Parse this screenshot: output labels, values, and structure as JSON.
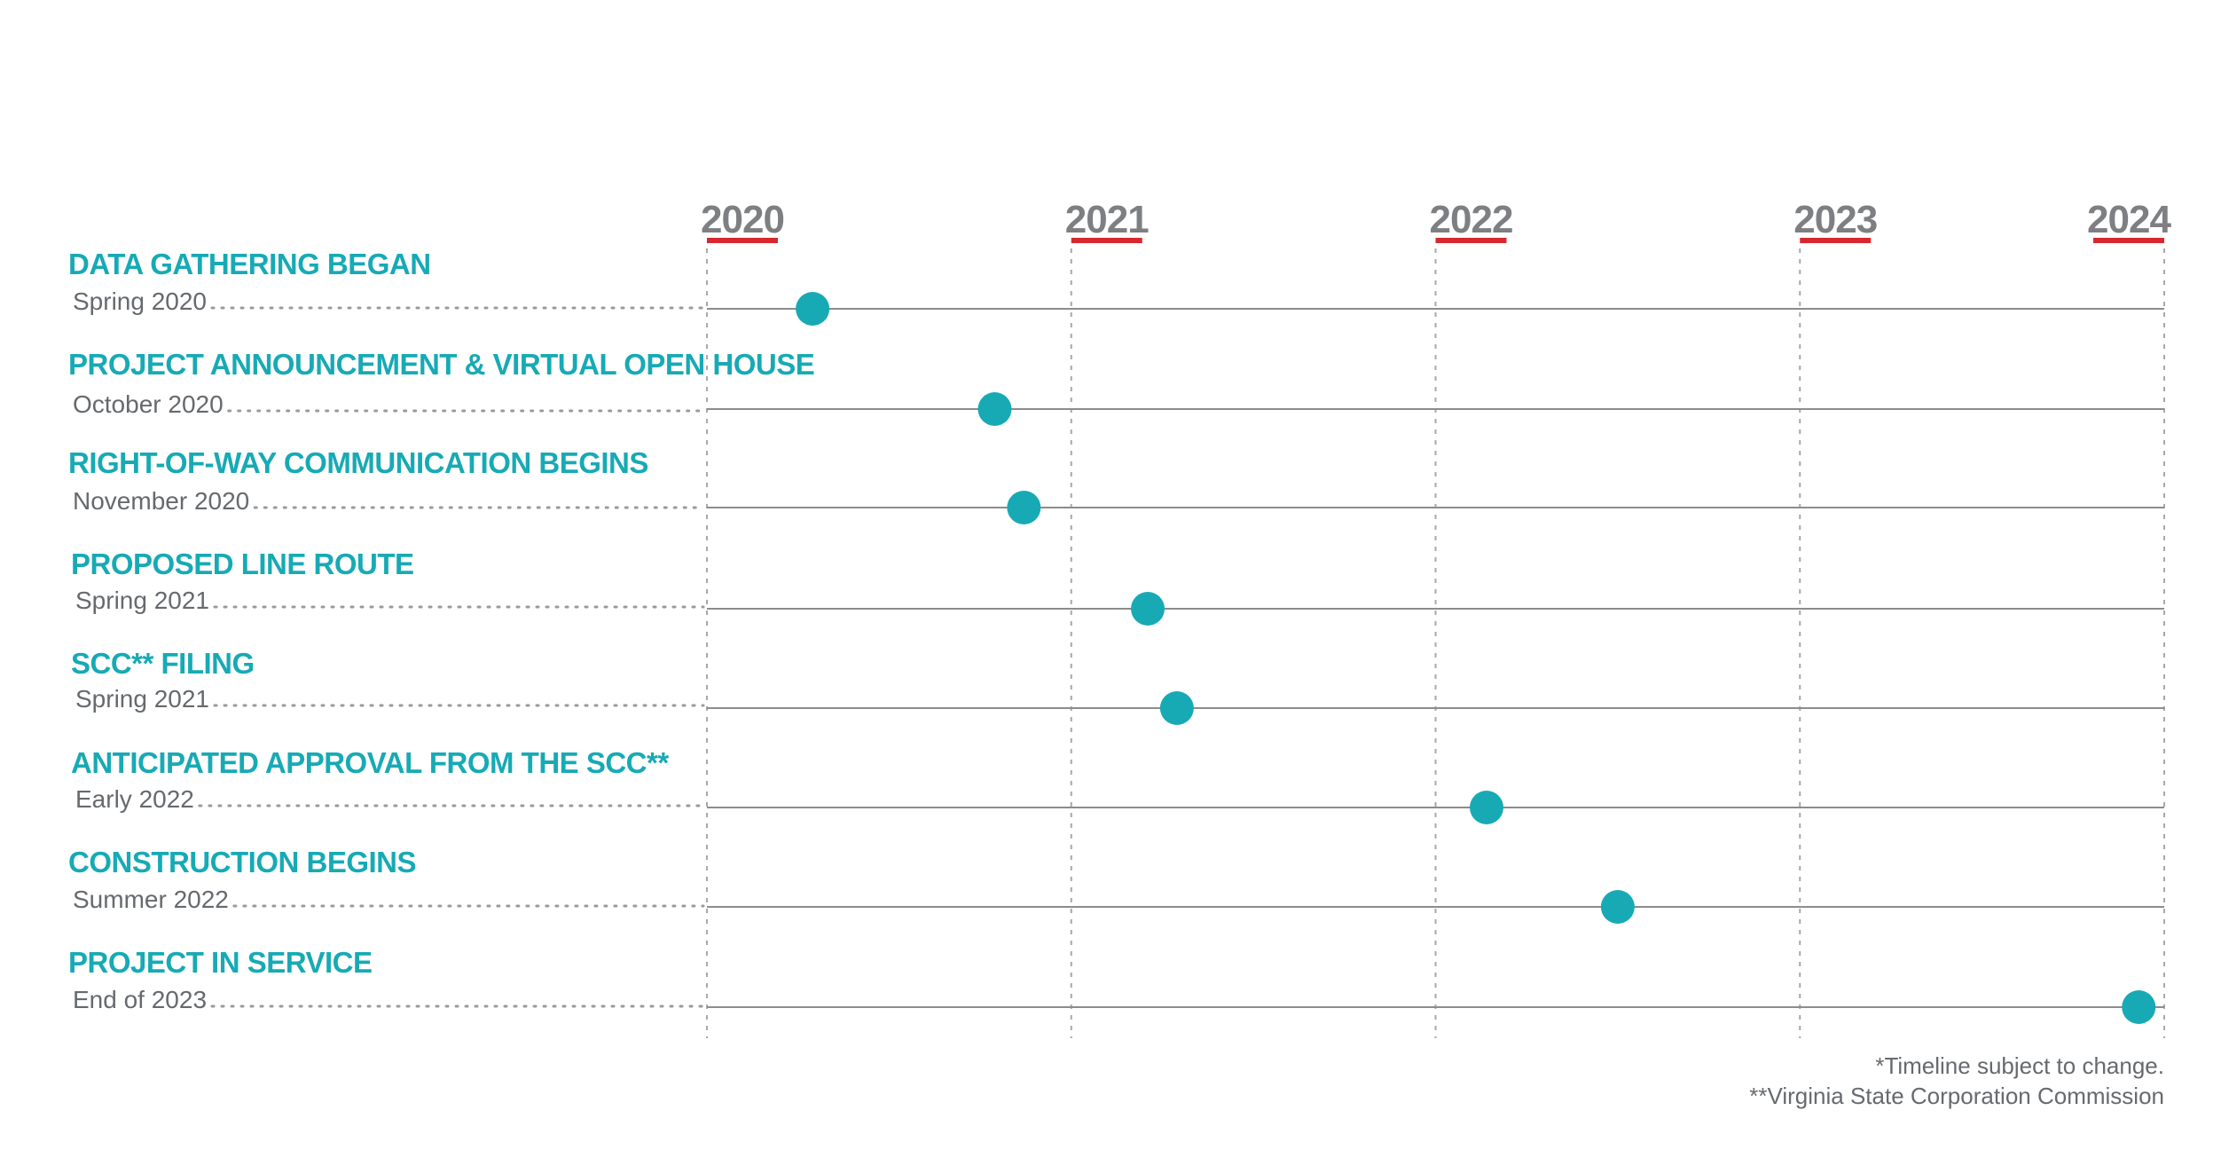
{
  "chart_data": {
    "type": "scatter",
    "x_axis": {
      "ticks": [
        "2020",
        "2021",
        "2022",
        "2023",
        "2024"
      ],
      "range": [
        2020,
        2024
      ]
    },
    "milestones": [
      {
        "title": "DATA GATHERING BEGAN",
        "date_label": "Spring 2020",
        "x": 2020.29
      },
      {
        "title": "PROJECT ANNOUNCEMENT & VIRTUAL OPEN HOUSE",
        "date_label": "October 2020",
        "x": 2020.79
      },
      {
        "title": "RIGHT-OF-WAY COMMUNICATION BEGINS",
        "date_label": "November 2020",
        "x": 2020.87
      },
      {
        "title": "PROPOSED LINE ROUTE",
        "date_label": "Spring 2021",
        "x": 2021.21
      },
      {
        "title": "SCC** FILING",
        "date_label": "Spring 2021",
        "x": 2021.29
      },
      {
        "title": "ANTICIPATED APPROVAL FROM THE SCC**",
        "date_label": "Early 2022",
        "x": 2022.14
      },
      {
        "title": "CONSTRUCTION BEGINS",
        "date_label": "Summer 2022",
        "x": 2022.5
      },
      {
        "title": "PROJECT IN SERVICE",
        "date_label": "End of 2023",
        "x": 2023.93
      }
    ],
    "notes": [
      "*Timeline subject to change.",
      "**Virginia State Corporation Commission"
    ],
    "grid": true,
    "colors": {
      "accent": "#17aab5",
      "year_underline": "#d7282f",
      "axis_text": "#7d7f82",
      "label_text": "#666a6e",
      "line": "#8c8c8c"
    }
  }
}
